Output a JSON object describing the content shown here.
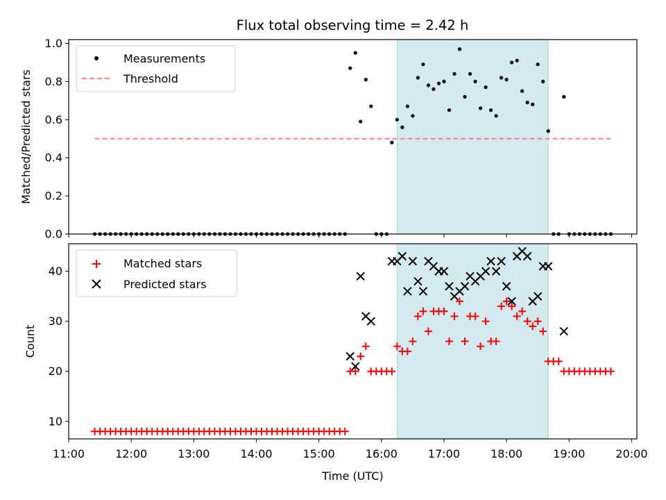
{
  "chart_data": [
    {
      "type": "scatter",
      "title": "Flux total observing time = 2.42 h",
      "xlabel": "",
      "ylabel": "Matched/Predicted stars",
      "ylim": [
        0,
        1.02
      ],
      "yticks": [
        "0.0",
        "0.2",
        "0.4",
        "0.6",
        "0.8",
        "1.0"
      ],
      "ytick_values": [
        0,
        0.2,
        0.4,
        0.6,
        0.8,
        1.0
      ],
      "xlim": [
        "11:00",
        "20:05"
      ],
      "highlight_span": {
        "start": "16:15",
        "end": "18:40",
        "color": "#d3eaf0"
      },
      "legend_position": "top-left",
      "series": [
        {
          "name": "Measurements",
          "marker": "dot",
          "color": "#000000",
          "x": [
            "11:25",
            "11:30",
            "11:35",
            "11:40",
            "11:45",
            "11:50",
            "11:55",
            "12:00",
            "12:05",
            "12:10",
            "12:15",
            "12:20",
            "12:25",
            "12:30",
            "12:35",
            "12:40",
            "12:45",
            "12:50",
            "12:55",
            "13:00",
            "13:05",
            "13:10",
            "13:15",
            "13:20",
            "13:25",
            "13:30",
            "13:35",
            "13:40",
            "13:45",
            "13:50",
            "13:55",
            "14:00",
            "14:05",
            "14:10",
            "14:15",
            "14:20",
            "14:25",
            "14:30",
            "14:35",
            "14:40",
            "14:45",
            "14:50",
            "14:55",
            "15:00",
            "15:05",
            "15:10",
            "15:15",
            "15:20",
            "15:25",
            "15:30",
            "15:35",
            "15:40",
            "15:45",
            "15:50",
            "15:55",
            "16:00",
            "16:05",
            "16:10",
            "16:15",
            "16:20",
            "16:25",
            "16:30",
            "16:35",
            "16:40",
            "16:45",
            "16:50",
            "16:55",
            "17:00",
            "17:05",
            "17:10",
            "17:15",
            "17:20",
            "17:25",
            "17:30",
            "17:35",
            "17:40",
            "17:45",
            "17:50",
            "17:55",
            "18:00",
            "18:05",
            "18:10",
            "18:15",
            "18:20",
            "18:25",
            "18:30",
            "18:35",
            "18:40",
            "18:45",
            "18:50",
            "18:55",
            "19:00",
            "19:05",
            "19:10",
            "19:15",
            "19:20",
            "19:25",
            "19:30",
            "19:35",
            "19:40"
          ],
          "y": [
            0,
            0,
            0,
            0,
            0,
            0,
            0,
            0,
            0,
            0,
            0,
            0,
            0,
            0,
            0,
            0,
            0,
            0,
            0,
            0,
            0,
            0,
            0,
            0,
            0,
            0,
            0,
            0,
            0,
            0,
            0,
            0,
            0,
            0,
            0,
            0,
            0,
            0,
            0,
            0,
            0,
            0,
            0,
            0,
            0,
            0,
            0,
            0,
            0,
            0.87,
            0.95,
            0.59,
            0.81,
            0.67,
            0,
            0,
            0,
            0.48,
            0.6,
            0.56,
            0.67,
            0.62,
            0.82,
            0.89,
            0.78,
            0.76,
            0.79,
            0.8,
            0.65,
            0.84,
            0.97,
            0.72,
            0.84,
            0.8,
            0.66,
            0.77,
            0.65,
            0.62,
            0.82,
            0.81,
            0.9,
            0.91,
            0.75,
            0.69,
            0.68,
            0.89,
            0.8,
            0.54,
            0,
            0,
            0.72,
            0,
            0,
            0,
            0,
            0,
            0,
            0,
            0,
            0
          ]
        },
        {
          "name": "Threshold",
          "type": "line",
          "style": "dashed",
          "color": "#ff7f7f",
          "x": [
            "11:25",
            "19:40"
          ],
          "y": [
            0.5,
            0.5
          ]
        }
      ]
    },
    {
      "type": "scatter",
      "title": "",
      "xlabel": "Time (UTC)",
      "ylabel": "Count",
      "ylim": [
        6.5,
        45.5
      ],
      "yticks": [
        "10",
        "20",
        "30",
        "40"
      ],
      "ytick_values": [
        10,
        20,
        30,
        40
      ],
      "xlim": [
        "11:00",
        "20:05"
      ],
      "xticks": [
        "11:00",
        "12:00",
        "13:00",
        "14:00",
        "15:00",
        "16:00",
        "17:00",
        "18:00",
        "19:00",
        "20:00"
      ],
      "highlight_span": {
        "start": "16:15",
        "end": "18:40",
        "color": "#d3eaf0"
      },
      "legend_position": "top-left",
      "series": [
        {
          "name": "Matched stars",
          "marker": "plus",
          "color": "#ff0000",
          "x": [
            "11:25",
            "11:30",
            "11:35",
            "11:40",
            "11:45",
            "11:50",
            "11:55",
            "12:00",
            "12:05",
            "12:10",
            "12:15",
            "12:20",
            "12:25",
            "12:30",
            "12:35",
            "12:40",
            "12:45",
            "12:50",
            "12:55",
            "13:00",
            "13:05",
            "13:10",
            "13:15",
            "13:20",
            "13:25",
            "13:30",
            "13:35",
            "13:40",
            "13:45",
            "13:50",
            "13:55",
            "14:00",
            "14:05",
            "14:10",
            "14:15",
            "14:20",
            "14:25",
            "14:30",
            "14:35",
            "14:40",
            "14:45",
            "14:50",
            "14:55",
            "15:00",
            "15:05",
            "15:10",
            "15:15",
            "15:20",
            "15:25",
            "15:30",
            "15:35",
            "15:40",
            "15:45",
            "15:50",
            "15:55",
            "16:00",
            "16:05",
            "16:10",
            "16:15",
            "16:20",
            "16:25",
            "16:30",
            "16:35",
            "16:40",
            "16:45",
            "16:50",
            "16:55",
            "17:00",
            "17:05",
            "17:10",
            "17:15",
            "17:20",
            "17:25",
            "17:30",
            "17:35",
            "17:40",
            "17:45",
            "17:50",
            "17:55",
            "18:00",
            "18:05",
            "18:10",
            "18:15",
            "18:20",
            "18:25",
            "18:30",
            "18:35",
            "18:40",
            "18:45",
            "18:50",
            "18:55",
            "19:00",
            "19:05",
            "19:10",
            "19:15",
            "19:20",
            "19:25",
            "19:30",
            "19:35",
            "19:40"
          ],
          "y": [
            8,
            8,
            8,
            8,
            8,
            8,
            8,
            8,
            8,
            8,
            8,
            8,
            8,
            8,
            8,
            8,
            8,
            8,
            8,
            8,
            8,
            8,
            8,
            8,
            8,
            8,
            8,
            8,
            8,
            8,
            8,
            8,
            8,
            8,
            8,
            8,
            8,
            8,
            8,
            8,
            8,
            8,
            8,
            8,
            8,
            8,
            8,
            8,
            8,
            20,
            20,
            23,
            25,
            20,
            20,
            20,
            20,
            20,
            25,
            24,
            24,
            26,
            31,
            32,
            28,
            32,
            32,
            32,
            26,
            31,
            34,
            26,
            31,
            31,
            25,
            30,
            26,
            26,
            33,
            34,
            33,
            31,
            32,
            30,
            29,
            30,
            28,
            22,
            22,
            22,
            20,
            20,
            20,
            20,
            20,
            20,
            20,
            20,
            20,
            20
          ]
        },
        {
          "name": "Predicted stars",
          "marker": "x",
          "color": "#000000",
          "x": [
            "15:30",
            "15:35",
            "15:40",
            "15:45",
            "15:50",
            "16:10",
            "16:15",
            "16:20",
            "16:25",
            "16:30",
            "16:35",
            "16:40",
            "16:45",
            "16:50",
            "16:55",
            "17:00",
            "17:05",
            "17:10",
            "17:15",
            "17:20",
            "17:25",
            "17:30",
            "17:35",
            "17:40",
            "17:45",
            "17:50",
            "17:55",
            "18:00",
            "18:05",
            "18:10",
            "18:15",
            "18:20",
            "18:25",
            "18:30",
            "18:35",
            "18:40",
            "18:55"
          ],
          "y": [
            23,
            21,
            39,
            31,
            30,
            42,
            42,
            43,
            36,
            42,
            38,
            36,
            42,
            41,
            40,
            40,
            37,
            35,
            36,
            37,
            39,
            38,
            39,
            40,
            42,
            40,
            42,
            37,
            34,
            43,
            44,
            43,
            34,
            35,
            41,
            41,
            28
          ]
        }
      ]
    }
  ]
}
